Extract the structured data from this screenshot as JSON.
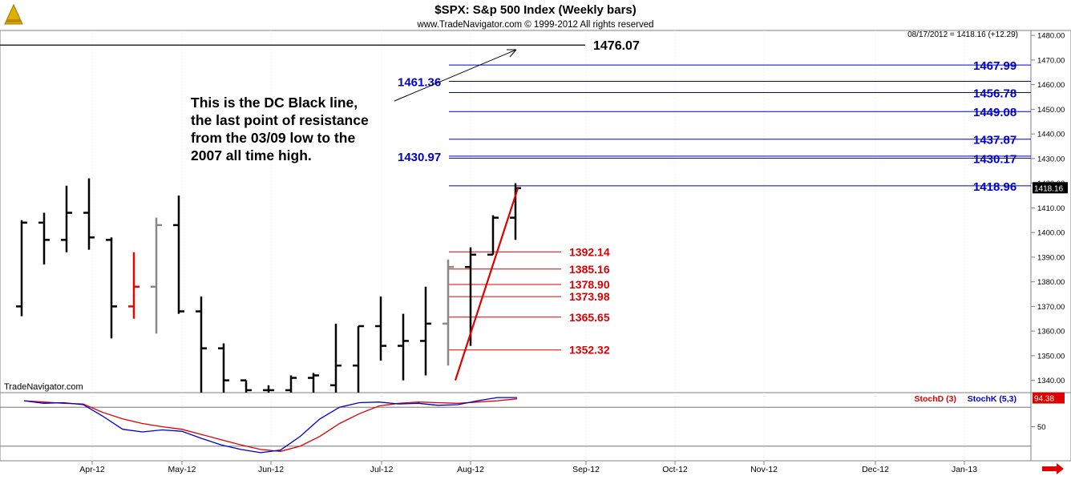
{
  "header": {
    "title": "$SPX:  S&p 500 Index  (Weekly bars)",
    "subtitle": "www.TradeNavigator.com © 1999-2012 All rights reserved",
    "last_close": "08/17/2012 = 1418.16 (+12.29)"
  },
  "watermark": "TradeNavigator.com",
  "annotation": {
    "lines": [
      "This is the DC Black line,",
      "the last point of resistance",
      "from the 03/09 low to the",
      "2007 all time high."
    ],
    "black_line_label": "1476.07"
  },
  "colors": {
    "up_bar": "#000000",
    "resistance_blue": "#0000cc",
    "support_red": "#dd0000",
    "stoch_k": "#0000cc",
    "stoch_d": "#dd0000",
    "grid": "#c0c0c0"
  },
  "chart_data": [
    {
      "type": "ohlc",
      "title": "$SPX:  S&p 500 Index  (Weekly bars)",
      "ylim": [
        1335,
        1482
      ],
      "y_ticks": [
        "1480.00",
        "1470.00",
        "1460.00",
        "1450.00",
        "1440.00",
        "1430.00",
        "1420.00",
        "1410.00",
        "1400.00",
        "1390.00",
        "1380.00",
        "1370.00",
        "1360.00",
        "1350.00",
        "1340.00"
      ],
      "last_price_label": "1418.16",
      "x_ticks": [
        "Apr-12",
        "May-12",
        "Jun-12",
        "Jul-12",
        "Aug-12",
        "Sep-12",
        "Oct-12",
        "Nov-12",
        "Dec-12",
        "Jan-13"
      ],
      "bars": [
        {
          "o": 1370,
          "h": 1405,
          "l": 1366,
          "c": 1404,
          "color": "black"
        },
        {
          "o": 1404,
          "h": 1408,
          "l": 1387,
          "c": 1397,
          "color": "black"
        },
        {
          "o": 1397,
          "h": 1419,
          "l": 1392,
          "c": 1408,
          "color": "black"
        },
        {
          "o": 1408,
          "h": 1422,
          "l": 1393,
          "c": 1398,
          "color": "black"
        },
        {
          "o": 1397,
          "h": 1398,
          "l": 1357,
          "c": 1370,
          "color": "black"
        },
        {
          "o": 1370,
          "h": 1392,
          "l": 1365,
          "c": 1378,
          "color": "red"
        },
        {
          "o": 1378,
          "h": 1406,
          "l": 1359,
          "c": 1403,
          "color": "gray"
        },
        {
          "o": 1403,
          "h": 1415,
          "l": 1367,
          "c": 1368,
          "color": "black"
        },
        {
          "o": 1368,
          "h": 1374,
          "l": 1334,
          "c": 1353,
          "color": "black"
        },
        {
          "o": 1353,
          "h": 1355,
          "l": 1335,
          "c": 1340,
          "color": "black"
        },
        {
          "o": 1340,
          "h": 1340,
          "l": 1335,
          "c": 1336,
          "color": "black"
        },
        {
          "o": 1336,
          "h": 1338,
          "l": 1335,
          "c": 1336,
          "color": "black"
        },
        {
          "o": 1336,
          "h": 1342,
          "l": 1333,
          "c": 1341,
          "color": "black"
        },
        {
          "o": 1341,
          "h": 1343,
          "l": 1335,
          "c": 1342,
          "color": "black"
        },
        {
          "o": 1338,
          "h": 1363,
          "l": 1335,
          "c": 1346,
          "color": "black"
        },
        {
          "o": 1346,
          "h": 1362,
          "l": 1335,
          "c": 1362,
          "color": "black"
        },
        {
          "o": 1362,
          "h": 1374,
          "l": 1348,
          "c": 1354,
          "color": "black"
        },
        {
          "o": 1354,
          "h": 1367,
          "l": 1340,
          "c": 1356,
          "color": "black"
        },
        {
          "o": 1356,
          "h": 1378,
          "l": 1342,
          "c": 1363,
          "color": "black"
        },
        {
          "o": 1363,
          "h": 1389,
          "l": 1346,
          "c": 1386,
          "color": "gray"
        },
        {
          "o": 1386,
          "h": 1394,
          "l": 1354,
          "c": 1391,
          "color": "black"
        },
        {
          "o": 1391,
          "h": 1407,
          "l": 1391,
          "c": 1406,
          "color": "black"
        },
        {
          "o": 1406,
          "h": 1420,
          "l": 1397,
          "c": 1418,
          "color": "black"
        }
      ],
      "resistance_levels": [
        {
          "value": 1476.07,
          "label": "1476.07",
          "color": "black"
        },
        {
          "value": 1467.99,
          "label": "1467.99"
        },
        {
          "value": 1461.36,
          "label": "1461.36"
        },
        {
          "value": 1456.78,
          "label": "1456.78"
        },
        {
          "value": 1449.08,
          "label": "1449.08"
        },
        {
          "value": 1437.87,
          "label": "1437.87"
        },
        {
          "value": 1430.97,
          "label": "1430.97"
        },
        {
          "value": 1430.17,
          "label": "1430.17"
        },
        {
          "value": 1418.96,
          "label": "1418.96"
        }
      ],
      "support_levels": [
        {
          "value": 1392.14,
          "label": "1392.14"
        },
        {
          "value": 1385.16,
          "label": "1385.16"
        },
        {
          "value": 1378.9,
          "label": "1378.90"
        },
        {
          "value": 1373.98,
          "label": "1373.98"
        },
        {
          "value": 1365.65,
          "label": "1365.65"
        },
        {
          "value": 1352.32,
          "label": "1352.32"
        }
      ],
      "trend_line": {
        "from": 1340,
        "to": 1418
      }
    },
    {
      "type": "line",
      "title": "",
      "ylim": [
        0,
        100
      ],
      "y_ticks": [
        "50"
      ],
      "last_value_label": "94.38",
      "reference_lines": [
        80,
        20
      ],
      "series": [
        {
          "name": "StochD (3)",
          "color": "#dd0000",
          "values": [
            90,
            88,
            86,
            85,
            72,
            62,
            55,
            50,
            46,
            38,
            30,
            22,
            15,
            12,
            20,
            35,
            55,
            70,
            82,
            86,
            88,
            87,
            86,
            88,
            90,
            93
          ]
        },
        {
          "name": "StochK (5,3)",
          "color": "#0000cc",
          "values": [
            90,
            86,
            87,
            84,
            66,
            46,
            42,
            45,
            43,
            32,
            22,
            15,
            10,
            14,
            35,
            62,
            80,
            87,
            88,
            85,
            86,
            83,
            84,
            90,
            95,
            95
          ]
        }
      ]
    }
  ]
}
